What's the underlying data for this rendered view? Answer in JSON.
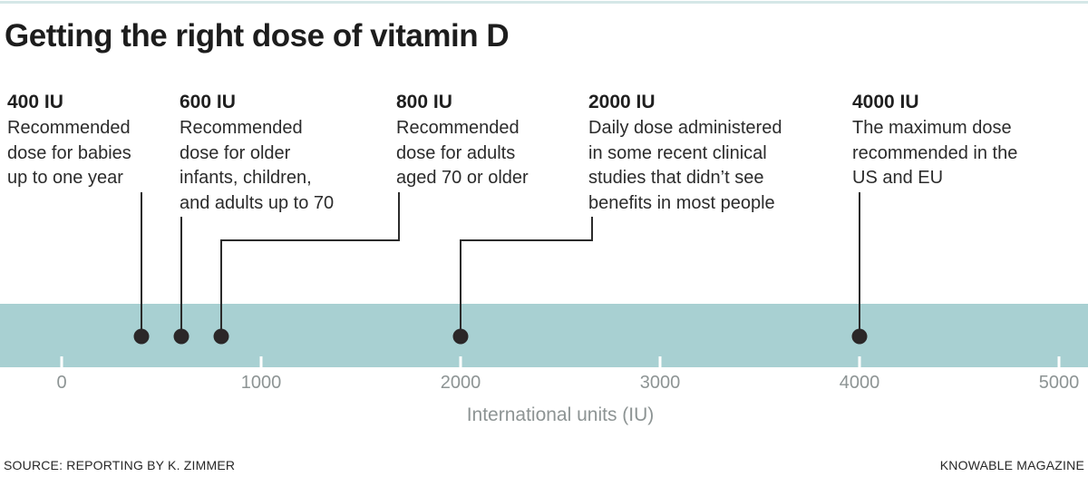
{
  "header": {
    "title": "Getting the right dose of vitamin D"
  },
  "chart_data": {
    "type": "number-line",
    "title": "Getting the right dose of vitamin D",
    "xlabel": "International units (IU)",
    "axis": {
      "min": 0,
      "max": 5000,
      "ticks": [
        0,
        1000,
        2000,
        3000,
        4000,
        5000
      ],
      "label": "International units (IU)"
    },
    "points": [
      {
        "value": 400,
        "label": "400 IU",
        "description_lines": [
          "Recommended",
          "dose for babies",
          "up to one year"
        ]
      },
      {
        "value": 600,
        "label": "600 IU",
        "description_lines": [
          "Recommended",
          "dose for older",
          "infants, children,",
          "and adults up to 70"
        ]
      },
      {
        "value": 800,
        "label": "800 IU",
        "description_lines": [
          "Recommended",
          "dose for adults",
          "aged 70 or older"
        ]
      },
      {
        "value": 2000,
        "label": "2000 IU",
        "description_lines": [
          "Daily dose administered",
          "in some recent clinical",
          "studies that didn’t see",
          "benefits in most people"
        ]
      },
      {
        "value": 4000,
        "label": "4000 IU",
        "description_lines": [
          "The maximum dose",
          "recommended in the",
          "US and EU"
        ]
      }
    ]
  },
  "colors": {
    "band": "#a8d0d2",
    "dot": "#2b2728",
    "leader_line": "#2b2b2b",
    "tick": "#ffffff",
    "axis_text": "#8d9494",
    "title_text": "#1d1d1d",
    "body_text": "#2b2b2b",
    "top_border": "#d5e7e7"
  },
  "footer": {
    "source": "SOURCE: REPORTING BY K. ZIMMER",
    "credit": "KNOWABLE MAGAZINE"
  }
}
